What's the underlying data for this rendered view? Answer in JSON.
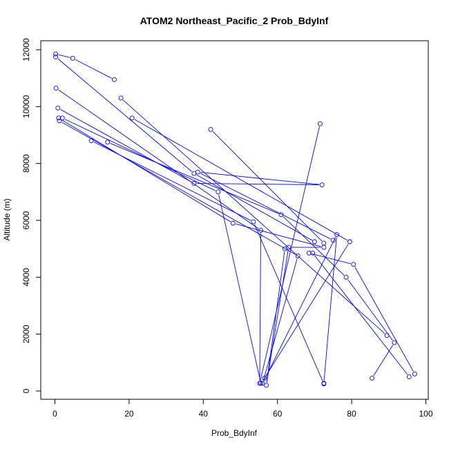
{
  "chart_data": {
    "type": "line",
    "title": "ATOM2 Northeast_Pacific_2 Prob_BdyInf",
    "xlabel": "Prob_BdyInf",
    "ylabel": "Altitude (m)",
    "xlim": [
      0,
      100
    ],
    "ylim": [
      0,
      12000
    ],
    "xticks": [
      0,
      20,
      40,
      60,
      80,
      100
    ],
    "yticks": [
      0,
      2000,
      4000,
      6000,
      8000,
      10000,
      12000
    ],
    "line_color": "#0000ff",
    "grid": false,
    "series": [
      {
        "x": [
          0.2,
          4.8,
          16.0
        ],
        "y": [
          11850,
          11700,
          10950
        ]
      },
      {
        "x": [
          0.2,
          37.5,
          70.0
        ],
        "y": [
          11750,
          7650,
          5250
        ]
      },
      {
        "x": [
          17.8,
          89.5
        ],
        "y": [
          10300,
          1950
        ]
      },
      {
        "x": [
          20.8,
          79.5,
          56.5
        ],
        "y": [
          9600,
          5250,
          450
        ]
      },
      {
        "x": [
          0.3,
          55.5,
          55.2,
          71.5
        ],
        "y": [
          10650,
          5650,
          270,
          9400
        ]
      },
      {
        "x": [
          42.0,
          72.5
        ],
        "y": [
          9200,
          5200
        ]
      },
      {
        "x": [
          1.0,
          48.0,
          72.5,
          63.0,
          57.0,
          62.0
        ],
        "y": [
          9600,
          5900,
          5050,
          5050,
          200,
          5000
        ]
      },
      {
        "x": [
          0.8,
          37.5,
          72.0,
          38.5,
          75.0
        ],
        "y": [
          9950,
          7300,
          7250,
          7700,
          5300
        ]
      },
      {
        "x": [
          2.0,
          44.0,
          55.5
        ],
        "y": [
          9600,
          7000,
          280
        ]
      },
      {
        "x": [
          9.8,
          53.5,
          72.5
        ],
        "y": [
          8800,
          5950,
          250
        ]
      },
      {
        "x": [
          14.2,
          61.0,
          78.5,
          91.5,
          85.5
        ],
        "y": [
          8750,
          6200,
          4000,
          1700,
          450
        ]
      },
      {
        "x": [
          1.2,
          65.5,
          56.0,
          76.0,
          72.5
        ],
        "y": [
          9500,
          4750,
          270,
          5500,
          270
        ]
      },
      {
        "x": [
          68.5,
          80.5,
          97.0
        ],
        "y": [
          4850,
          4450,
          600
        ]
      },
      {
        "x": [
          69.5,
          95.5
        ],
        "y": [
          4850,
          500
        ]
      }
    ]
  }
}
